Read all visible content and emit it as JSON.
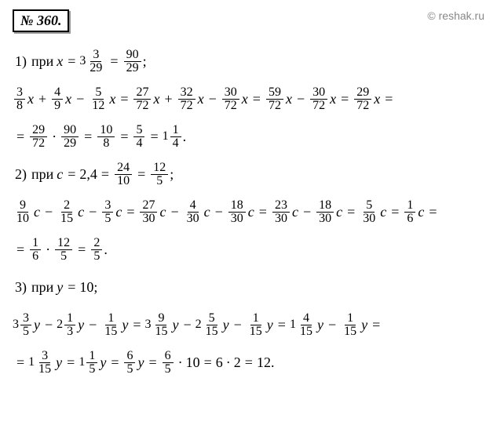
{
  "header": {
    "problem_number": "№ 360.",
    "copyright": "© reshak.ru"
  },
  "problems": {
    "p1": {
      "label": "1)",
      "given_prefix": "при",
      "var": "x",
      "mixed_whole": "3",
      "mixed_num": "3",
      "mixed_den": "29",
      "improper_num": "90",
      "improper_den": "29",
      "semicolon": ";",
      "t1_n": "3",
      "t1_d": "8",
      "t2_n": "4",
      "t2_d": "9",
      "t3_n": "5",
      "t3_d": "12",
      "c1_n": "27",
      "c1_d": "72",
      "c2_n": "32",
      "c2_d": "72",
      "c3_n": "30",
      "c3_d": "72",
      "s1_n": "59",
      "s1_d": "72",
      "s2_n": "30",
      "s2_d": "72",
      "r1_n": "29",
      "r1_d": "72",
      "m1_n": "29",
      "m1_d": "72",
      "m2_n": "90",
      "m2_d": "29",
      "f1_n": "10",
      "f1_d": "8",
      "f2_n": "5",
      "f2_d": "4",
      "ans_whole": "1",
      "ans_n": "1",
      "ans_d": "4"
    },
    "p2": {
      "label": "2)",
      "given_prefix": "при",
      "var": "c",
      "decimal": "2,4",
      "f1_n": "24",
      "f1_d": "10",
      "f2_n": "12",
      "f2_d": "5",
      "semicolon": ";",
      "t1_n": "9",
      "t1_d": "10",
      "t2_n": "2",
      "t2_d": "15",
      "t3_n": "3",
      "t3_d": "5",
      "c1_n": "27",
      "c1_d": "30",
      "c2_n": "4",
      "c2_d": "30",
      "c3_n": "18",
      "c3_d": "30",
      "s1_n": "23",
      "s1_d": "30",
      "s2_n": "18",
      "s2_d": "30",
      "r1_n": "5",
      "r1_d": "30",
      "r2_n": "1",
      "r2_d": "6",
      "m1_n": "1",
      "m1_d": "6",
      "m2_n": "12",
      "m2_d": "5",
      "ans_n": "2",
      "ans_d": "5"
    },
    "p3": {
      "label": "3)",
      "given_prefix": "при",
      "var": "y",
      "value": "10",
      "semicolon": ";",
      "t1_w": "3",
      "t1_n": "3",
      "t1_d": "5",
      "t2_w": "2",
      "t2_n": "1",
      "t2_d": "3",
      "t3_n": "1",
      "t3_d": "15",
      "c1_w": "3",
      "c1_n": "9",
      "c1_d": "15",
      "c2_w": "2",
      "c2_n": "5",
      "c2_d": "15",
      "c3_n": "1",
      "c3_d": "15",
      "s1_w": "1",
      "s1_n": "4",
      "s1_d": "15",
      "s2_n": "1",
      "s2_d": "15",
      "r1_w": "1",
      "r1_n": "3",
      "r1_d": "15",
      "r2_w": "1",
      "r2_n": "1",
      "r2_d": "5",
      "r3_n": "6",
      "r3_d": "5",
      "m1_n": "6",
      "m1_d": "5",
      "m1_val": "10",
      "m2_a": "6",
      "m2_b": "2",
      "ans": "12"
    }
  },
  "colors": {
    "text": "#000000",
    "copyright": "#888888",
    "bg": "#ffffff"
  }
}
